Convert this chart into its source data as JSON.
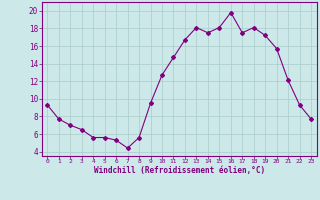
{
  "x": [
    0,
    1,
    2,
    3,
    4,
    5,
    6,
    7,
    8,
    9,
    10,
    11,
    12,
    13,
    14,
    15,
    16,
    17,
    18,
    19,
    20,
    21,
    22,
    23
  ],
  "y": [
    9.3,
    7.7,
    7.0,
    6.5,
    5.6,
    5.6,
    5.3,
    4.4,
    5.6,
    9.5,
    12.7,
    14.7,
    16.7,
    18.1,
    17.5,
    18.1,
    19.8,
    17.5,
    18.1,
    17.2,
    15.7,
    12.1,
    9.3,
    7.7
  ],
  "line_color": "#800080",
  "marker": "D",
  "marker_size": 2.0,
  "bg_color": "#cce8e8",
  "grid_color": "#aacccc",
  "xlabel": "Windchill (Refroidissement éolien,°C)",
  "xlim": [
    -0.5,
    23.5
  ],
  "ylim": [
    3.5,
    21.0
  ],
  "yticks": [
    4,
    6,
    8,
    10,
    12,
    14,
    16,
    18,
    20
  ],
  "xticks": [
    0,
    1,
    2,
    3,
    4,
    5,
    6,
    7,
    8,
    9,
    10,
    11,
    12,
    13,
    14,
    15,
    16,
    17,
    18,
    19,
    20,
    21,
    22,
    23
  ],
  "label_color": "#800080",
  "tick_color": "#800080",
  "spine_color": "#800080",
  "xlabel_fontsize": 5.5,
  "xtick_fontsize": 4.5,
  "ytick_fontsize": 5.5
}
